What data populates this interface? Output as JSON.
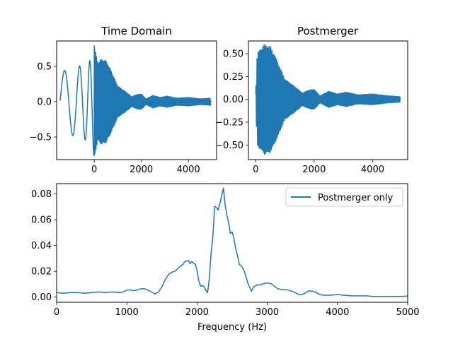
{
  "chart_data": [
    {
      "id": "time-domain",
      "type": "line",
      "title": "Time Domain",
      "xlabel": "",
      "ylabel": "",
      "xlim": [
        -1600,
        5200
      ],
      "ylim": [
        -0.82,
        0.86
      ],
      "xticks": [
        0,
        2000,
        4000
      ],
      "yticks": [
        -0.5,
        0.0,
        0.5
      ],
      "ytick_labels": [
        "−0.5",
        "0.0",
        "0.5"
      ],
      "grid": false,
      "series": [
        {
          "kind": "waveform",
          "x_start": -1450,
          "x_end": 4950,
          "inspiral_end": 0,
          "merger_peak": 0.79,
          "merger_trough": -0.76,
          "amplitude_envelope": [
            [
              -1450,
              0.42
            ],
            [
              -1000,
              0.47
            ],
            [
              -500,
              0.52
            ],
            [
              -100,
              0.6
            ],
            [
              0,
              0.79
            ],
            [
              150,
              0.55
            ],
            [
              300,
              0.6
            ],
            [
              500,
              0.58
            ],
            [
              700,
              0.45
            ],
            [
              1000,
              0.22
            ],
            [
              1300,
              0.15
            ],
            [
              1600,
              0.07
            ],
            [
              1800,
              0.1
            ],
            [
              2000,
              0.11
            ],
            [
              2200,
              0.04
            ],
            [
              2500,
              0.09
            ],
            [
              2800,
              0.06
            ],
            [
              3100,
              0.08
            ],
            [
              3500,
              0.05
            ],
            [
              4000,
              0.06
            ],
            [
              4500,
              0.04
            ],
            [
              4950,
              0.05
            ]
          ]
        }
      ]
    },
    {
      "id": "postmerger",
      "type": "line",
      "title": "Postmerger",
      "xlabel": "",
      "ylabel": "",
      "xlim": [
        -250,
        5200
      ],
      "ylim": [
        -0.66,
        0.64
      ],
      "xticks": [
        0,
        2000,
        4000
      ],
      "yticks": [
        -0.5,
        -0.25,
        0.0,
        0.25,
        0.5
      ],
      "ytick_labels": [
        "−0.50",
        "−0.25",
        "0.00",
        "0.25",
        "0.50"
      ],
      "grid": false,
      "series": [
        {
          "kind": "waveform",
          "x_start": 0,
          "x_end": 4950,
          "merger_peak": 0.6,
          "merger_trough": -0.64,
          "amplitude_envelope": [
            [
              0,
              0.1
            ],
            [
              50,
              0.5
            ],
            [
              150,
              0.55
            ],
            [
              300,
              0.6
            ],
            [
              500,
              0.58
            ],
            [
              700,
              0.45
            ],
            [
              1000,
              0.22
            ],
            [
              1300,
              0.15
            ],
            [
              1600,
              0.07
            ],
            [
              1800,
              0.1
            ],
            [
              2000,
              0.11
            ],
            [
              2200,
              0.04
            ],
            [
              2500,
              0.09
            ],
            [
              2800,
              0.06
            ],
            [
              3100,
              0.08
            ],
            [
              3500,
              0.05
            ],
            [
              4000,
              0.06
            ],
            [
              4500,
              0.04
            ],
            [
              4950,
              0.03
            ]
          ]
        }
      ]
    },
    {
      "id": "spectrum",
      "type": "line",
      "title": "",
      "xlabel": "Frequency (Hz)",
      "ylabel": "",
      "xlim": [
        0,
        5000
      ],
      "ylim": [
        -0.004,
        0.088
      ],
      "xticks": [
        0,
        1000,
        2000,
        3000,
        4000,
        5000
      ],
      "yticks": [
        0.0,
        0.02,
        0.04,
        0.06,
        0.08
      ],
      "ytick_labels": [
        "0.00",
        "0.02",
        "0.04",
        "0.06",
        "0.08"
      ],
      "grid": false,
      "legend": {
        "position": "top-right",
        "entries": [
          "Postmerger only"
        ]
      },
      "series": [
        {
          "name": "Postmerger only",
          "x": [
            0,
            100,
            200,
            300,
            400,
            500,
            600,
            700,
            800,
            900,
            950,
            1000,
            1050,
            1100,
            1150,
            1200,
            1250,
            1300,
            1350,
            1400,
            1450,
            1500,
            1550,
            1600,
            1650,
            1700,
            1750,
            1800,
            1825,
            1850,
            1875,
            1900,
            1925,
            1950,
            1975,
            2000,
            2025,
            2050,
            2075,
            2100,
            2125,
            2150,
            2175,
            2200,
            2225,
            2250,
            2275,
            2300,
            2325,
            2350,
            2375,
            2400,
            2425,
            2450,
            2475,
            2500,
            2525,
            2550,
            2575,
            2600,
            2625,
            2650,
            2675,
            2700,
            2725,
            2750,
            2775,
            2800,
            2850,
            2900,
            2950,
            3000,
            3050,
            3100,
            3150,
            3200,
            3250,
            3300,
            3350,
            3400,
            3450,
            3500,
            3550,
            3600,
            3650,
            3700,
            3750,
            3800,
            3900,
            4000,
            4100,
            4200,
            4300,
            4400,
            4500,
            4600,
            4700,
            4800,
            4900,
            5000
          ],
          "y": [
            0.0035,
            0.003,
            0.0035,
            0.0035,
            0.003,
            0.0035,
            0.004,
            0.0035,
            0.004,
            0.0035,
            0.004,
            0.0055,
            0.0055,
            0.005,
            0.0055,
            0.0065,
            0.0065,
            0.0055,
            0.004,
            0.0025,
            0.004,
            0.008,
            0.014,
            0.018,
            0.0195,
            0.0205,
            0.0235,
            0.0255,
            0.0275,
            0.028,
            0.0285,
            0.026,
            0.0275,
            0.0265,
            0.0255,
            0.0205,
            0.0125,
            0.0085,
            0.009,
            0.008,
            0.0055,
            0.0035,
            0.0145,
            0.0345,
            0.0465,
            0.0705,
            0.0695,
            0.0675,
            0.0725,
            0.0785,
            0.0845,
            0.0715,
            0.0635,
            0.0575,
            0.0495,
            0.0505,
            0.0455,
            0.0375,
            0.0325,
            0.0255,
            0.0245,
            0.0225,
            0.0195,
            0.0155,
            0.0105,
            0.0075,
            0.0045,
            0.0075,
            0.0095,
            0.0095,
            0.0105,
            0.011,
            0.0105,
            0.0085,
            0.0065,
            0.006,
            0.006,
            0.0055,
            0.0045,
            0.0035,
            0.002,
            0.002,
            0.0035,
            0.005,
            0.0045,
            0.0035,
            0.002,
            0.0015,
            0.0015,
            0.002,
            0.0015,
            0.001,
            0.001,
            0.001,
            0.0005,
            0.0005,
            0.0005,
            0.0005,
            0.0005,
            0.0008
          ]
        }
      ]
    }
  ]
}
